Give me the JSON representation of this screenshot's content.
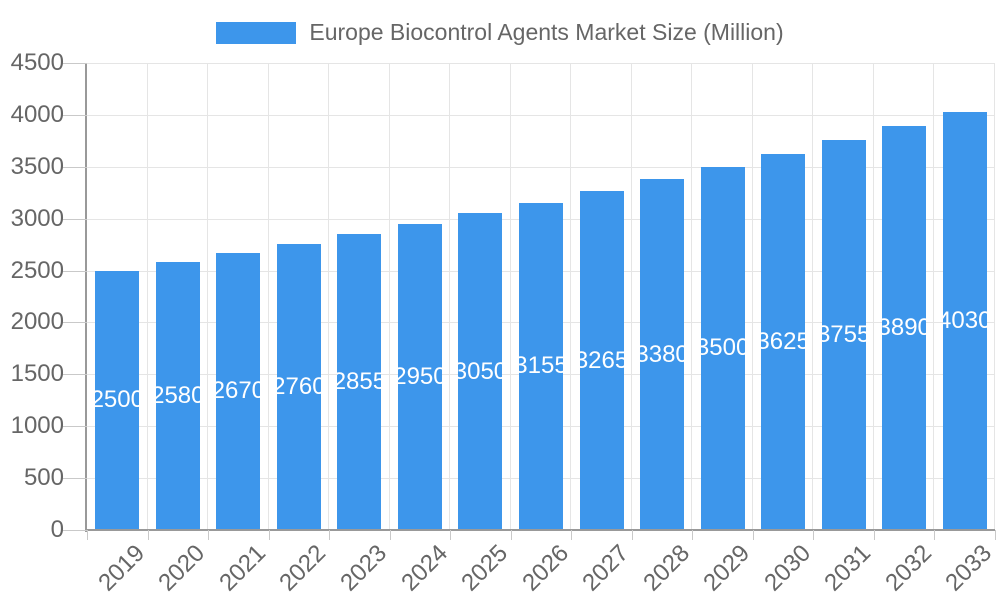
{
  "legend": {
    "label": "Europe Biocontrol Agents Market Size (Million)",
    "position": "top"
  },
  "chart_data": {
    "type": "bar",
    "title": "Europe Biocontrol Agents Market Size (Million)",
    "categories": [
      "2019",
      "2020",
      "2021",
      "2022",
      "2023",
      "2024",
      "2025",
      "2026",
      "2027",
      "2028",
      "2029",
      "2030",
      "2031",
      "2032",
      "2033"
    ],
    "values": [
      2500,
      2580,
      2670,
      2760,
      2855,
      2950,
      3050,
      3155,
      3265,
      3380,
      3500,
      3625,
      3755,
      3890,
      4030
    ],
    "xlabel": "",
    "ylabel": "",
    "ylim": [
      0,
      4500
    ],
    "yticks": [
      0,
      500,
      1000,
      1500,
      2000,
      2500,
      3000,
      3500,
      4000,
      4500
    ],
    "grid": true,
    "legend_position": "top",
    "value_labels": "inside-middle-white",
    "colors": {
      "bar": "#3D96EB",
      "axis_text": "#666666",
      "gridline": "#e5e5e5",
      "tick": "#c9c9c9",
      "axis_line": "#999999",
      "value_label": "#ffffff",
      "background": "#ffffff"
    }
  }
}
